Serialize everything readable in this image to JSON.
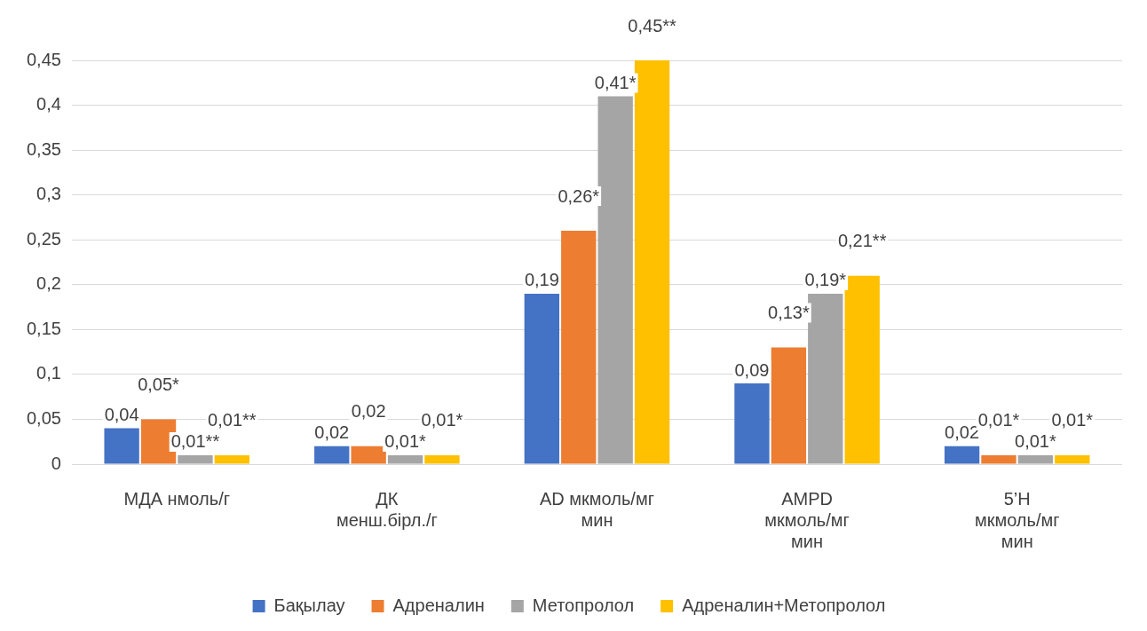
{
  "chart_data": {
    "type": "bar",
    "categories": [
      "МДА нмоль/г",
      "ДК менш.бірл./г",
      "AD мкмоль/мг мин",
      "AMPD мкмоль/мг мин",
      "5’Н мкмоль/мг мин"
    ],
    "series": [
      {
        "name": "Бақылау",
        "color": "#4472c4",
        "values": [
          0.04,
          0.02,
          0.19,
          0.09,
          0.02
        ],
        "value_labels": [
          "0,04",
          "0,02",
          "0,19",
          "0,09",
          "0,02"
        ]
      },
      {
        "name": "Адреналин",
        "color": "#ed7d31",
        "values": [
          0.05,
          0.02,
          0.26,
          0.13,
          0.01
        ],
        "value_labels": [
          "0,05*",
          "0,02",
          "0,26*",
          "0,13*",
          "0,01*"
        ]
      },
      {
        "name": "Метопролол",
        "color": "#a5a5a5",
        "values": [
          0.01,
          0.01,
          0.41,
          0.19,
          0.01
        ],
        "value_labels": [
          "0,01**",
          "0,01*",
          "0,41*",
          "0,19*",
          "0,01*"
        ]
      },
      {
        "name": "Адреналин+Метопролол",
        "color": "#ffc000",
        "values": [
          0.01,
          0.01,
          0.45,
          0.21,
          0.01
        ],
        "value_labels": [
          "0,01**",
          "0,01*",
          "0,45**",
          "0,21**",
          "0,01*"
        ]
      }
    ],
    "ylim": [
      0,
      0.45
    ],
    "yticks": [
      0,
      {
        "value": 0.05,
        "label": "0,05"
      },
      {
        "value": 0.1,
        "label": "0,1"
      },
      {
        "value": 0.15,
        "label": "0,15"
      },
      {
        "value": 0.2,
        "label": "0,2"
      },
      {
        "value": 0.25,
        "label": "0,25"
      },
      {
        "value": 0.3,
        "label": "0,3"
      },
      {
        "value": 0.35,
        "label": "0,35"
      },
      {
        "value": 0.4,
        "label": "0,4"
      },
      {
        "value": 0.45,
        "label": "0,45"
      }
    ],
    "grid": "y",
    "legend": "bottom"
  }
}
